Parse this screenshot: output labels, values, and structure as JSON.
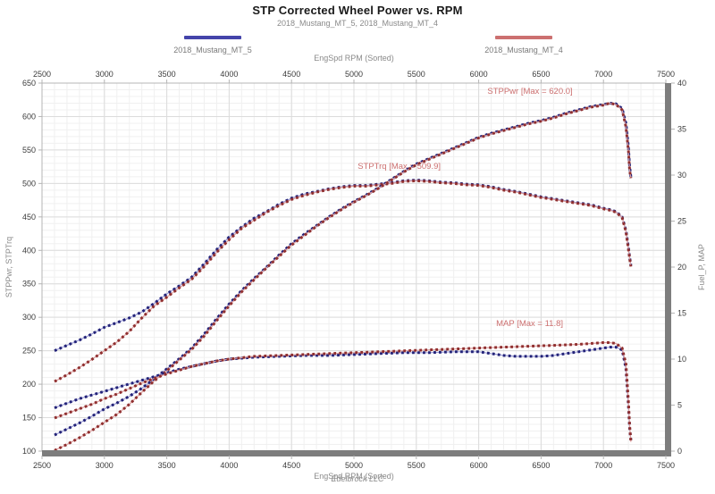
{
  "header": {
    "title": "STP Corrected Wheel Power vs. RPM",
    "subtitle": "2018_Mustang_MT_5, 2018_Mustang_MT_4"
  },
  "legend": [
    {
      "label": "2018_Mustang_MT_5",
      "color": "#4444aa"
    },
    {
      "label": "2018_Mustang_MT_4",
      "color": "#cc7070"
    }
  ],
  "footer": {
    "text": "Edelbrock LLC"
  },
  "colors": {
    "grid_major": "#dcdcdc",
    "grid_minor": "#f0f0f0",
    "border_thin": "#b4b4b4",
    "border_thick": "#7d7d7d",
    "tick_text": "#3c3c3c",
    "axis_label": "#8a8a8a",
    "annotation": "#cc7070"
  },
  "chart_data": {
    "type": "line",
    "title": "STP Corrected Wheel Power vs. RPM",
    "subtitle": "2018_Mustang_MT_5, 2018_Mustang_MT_4",
    "xlabel_top": "EngSpd RPM  (Sorted)",
    "xlabel_bottom": "EngSpd RPM  (Sorted)",
    "ylabel_left": "STPPwr, STPTrq",
    "ylabel_right": "Fuel_P, MAP",
    "x_range": [
      2500,
      7500
    ],
    "x_step": 500,
    "x_minor": 100,
    "y_left_range": [
      100,
      650
    ],
    "y_left_step": 50,
    "y_left_minor": 10,
    "y_right_range": [
      0,
      40
    ],
    "y_right_step": 5,
    "grid": true,
    "legend_position": "top",
    "annotations": [
      {
        "text": "STPPwr  [Max = 620.0]",
        "axis": "left",
        "x": 6070,
        "y": 634,
        "anchor": "start"
      },
      {
        "text": "STPTrq  [Max = 509.9]",
        "axis": "left",
        "x": 5030,
        "y": 522,
        "anchor": "start"
      },
      {
        "text": "MAP  [Max = 11.8]",
        "axis": "right",
        "x": 6140,
        "y": 13.6,
        "anchor": "start"
      }
    ],
    "series": [
      {
        "name": "STPTrq 2018_Mustang_MT_5",
        "axis": "left",
        "dot_color": "#232378",
        "line_color": "#9b9bd6",
        "points": [
          [
            2600,
            250
          ],
          [
            2700,
            258
          ],
          [
            2800,
            266
          ],
          [
            2900,
            275
          ],
          [
            3000,
            285
          ],
          [
            3100,
            292
          ],
          [
            3200,
            299
          ],
          [
            3300,
            308
          ],
          [
            3400,
            321
          ],
          [
            3500,
            335
          ],
          [
            3600,
            347
          ],
          [
            3700,
            360
          ],
          [
            3800,
            380
          ],
          [
            3900,
            401
          ],
          [
            4000,
            420
          ],
          [
            4100,
            435
          ],
          [
            4200,
            448
          ],
          [
            4300,
            458
          ],
          [
            4400,
            469
          ],
          [
            4500,
            478
          ],
          [
            4600,
            484
          ],
          [
            4700,
            488
          ],
          [
            4800,
            492
          ],
          [
            4900,
            495
          ],
          [
            5000,
            497
          ],
          [
            5100,
            497
          ],
          [
            5200,
            499
          ],
          [
            5300,
            501
          ],
          [
            5400,
            504
          ],
          [
            5500,
            505
          ],
          [
            5600,
            504
          ],
          [
            5700,
            502
          ],
          [
            5800,
            501
          ],
          [
            5900,
            499
          ],
          [
            6000,
            498
          ],
          [
            6100,
            495
          ],
          [
            6200,
            491
          ],
          [
            6300,
            488
          ],
          [
            6400,
            484
          ],
          [
            6500,
            480
          ],
          [
            6600,
            477
          ],
          [
            6700,
            474
          ],
          [
            6800,
            471
          ],
          [
            6900,
            468
          ],
          [
            7000,
            463
          ],
          [
            7050,
            461
          ],
          [
            7100,
            458
          ],
          [
            7150,
            450
          ],
          [
            7180,
            430
          ],
          [
            7200,
            405
          ],
          [
            7210,
            390
          ],
          [
            7220,
            378
          ]
        ]
      },
      {
        "name": "STPTrq 2018_Mustang_MT_4",
        "axis": "left",
        "dot_color": "#8f2f2f",
        "line_color": "#dc9c9c",
        "points": [
          [
            2600,
            204
          ],
          [
            2700,
            214
          ],
          [
            2800,
            225
          ],
          [
            2900,
            237
          ],
          [
            3000,
            250
          ],
          [
            3100,
            263
          ],
          [
            3200,
            279
          ],
          [
            3300,
            299
          ],
          [
            3400,
            317
          ],
          [
            3500,
            330
          ],
          [
            3600,
            344
          ],
          [
            3700,
            357
          ],
          [
            3800,
            376
          ],
          [
            3900,
            397
          ],
          [
            4000,
            416
          ],
          [
            4100,
            433
          ],
          [
            4200,
            445
          ],
          [
            4300,
            457
          ],
          [
            4400,
            467
          ],
          [
            4500,
            476
          ],
          [
            4600,
            482
          ],
          [
            4700,
            487
          ],
          [
            4800,
            491
          ],
          [
            4900,
            494
          ],
          [
            5000,
            496
          ],
          [
            5100,
            496
          ],
          [
            5200,
            498
          ],
          [
            5300,
            500
          ],
          [
            5400,
            503
          ],
          [
            5500,
            504
          ],
          [
            5600,
            503
          ],
          [
            5700,
            501
          ],
          [
            5800,
            500
          ],
          [
            5900,
            498
          ],
          [
            6000,
            497
          ],
          [
            6100,
            494
          ],
          [
            6200,
            490
          ],
          [
            6300,
            487
          ],
          [
            6400,
            483
          ],
          [
            6500,
            479
          ],
          [
            6600,
            476
          ],
          [
            6700,
            473
          ],
          [
            6800,
            470
          ],
          [
            6900,
            467
          ],
          [
            7000,
            462
          ],
          [
            7050,
            460
          ],
          [
            7100,
            457
          ],
          [
            7150,
            449
          ],
          [
            7180,
            428
          ],
          [
            7200,
            402
          ],
          [
            7210,
            388
          ],
          [
            7220,
            376
          ]
        ]
      },
      {
        "name": "STPPwr 2018_Mustang_MT_5",
        "axis": "left",
        "dot_color": "#232378",
        "line_color": "#9b9bd6",
        "points": [
          [
            2600,
            124
          ],
          [
            2700,
            133
          ],
          [
            2800,
            142
          ],
          [
            2900,
            152
          ],
          [
            3000,
            163
          ],
          [
            3100,
            172
          ],
          [
            3200,
            182
          ],
          [
            3300,
            194
          ],
          [
            3400,
            208
          ],
          [
            3500,
            223
          ],
          [
            3600,
            238
          ],
          [
            3700,
            254
          ],
          [
            3800,
            275
          ],
          [
            3900,
            298
          ],
          [
            4000,
            320
          ],
          [
            4100,
            340
          ],
          [
            4200,
            358
          ],
          [
            4300,
            375
          ],
          [
            4400,
            393
          ],
          [
            4500,
            410
          ],
          [
            4600,
            424
          ],
          [
            4700,
            437
          ],
          [
            4800,
            450
          ],
          [
            4900,
            462
          ],
          [
            5000,
            473
          ],
          [
            5100,
            483
          ],
          [
            5200,
            494
          ],
          [
            5300,
            506
          ],
          [
            5400,
            518
          ],
          [
            5500,
            529
          ],
          [
            5600,
            537
          ],
          [
            5700,
            545
          ],
          [
            5800,
            553
          ],
          [
            5900,
            561
          ],
          [
            6000,
            569
          ],
          [
            6100,
            575
          ],
          [
            6200,
            580
          ],
          [
            6300,
            585
          ],
          [
            6400,
            590
          ],
          [
            6500,
            594
          ],
          [
            6600,
            599
          ],
          [
            6700,
            605
          ],
          [
            6800,
            610
          ],
          [
            6900,
            615
          ],
          [
            7000,
            618
          ],
          [
            7050,
            620
          ],
          [
            7100,
            619
          ],
          [
            7150,
            612
          ],
          [
            7180,
            590
          ],
          [
            7200,
            555
          ],
          [
            7210,
            525
          ],
          [
            7220,
            510
          ]
        ]
      },
      {
        "name": "STPPwr 2018_Mustang_MT_4",
        "axis": "left",
        "dot_color": "#8f2f2f",
        "line_color": "#dc9c9c",
        "points": [
          [
            2600,
            101
          ],
          [
            2700,
            110
          ],
          [
            2800,
            120
          ],
          [
            2900,
            131
          ],
          [
            3000,
            143
          ],
          [
            3100,
            155
          ],
          [
            3200,
            170
          ],
          [
            3300,
            188
          ],
          [
            3400,
            205
          ],
          [
            3500,
            220
          ],
          [
            3600,
            236
          ],
          [
            3700,
            252
          ],
          [
            3800,
            272
          ],
          [
            3900,
            295
          ],
          [
            4000,
            317
          ],
          [
            4100,
            338
          ],
          [
            4200,
            356
          ],
          [
            4300,
            374
          ],
          [
            4400,
            391
          ],
          [
            4500,
            408
          ],
          [
            4600,
            422
          ],
          [
            4700,
            436
          ],
          [
            4800,
            449
          ],
          [
            4900,
            461
          ],
          [
            5000,
            472
          ],
          [
            5100,
            482
          ],
          [
            5200,
            493
          ],
          [
            5300,
            505
          ],
          [
            5400,
            517
          ],
          [
            5500,
            528
          ],
          [
            5600,
            536
          ],
          [
            5700,
            544
          ],
          [
            5800,
            552
          ],
          [
            5900,
            560
          ],
          [
            6000,
            568
          ],
          [
            6100,
            574
          ],
          [
            6200,
            579
          ],
          [
            6300,
            584
          ],
          [
            6400,
            589
          ],
          [
            6500,
            593
          ],
          [
            6600,
            598
          ],
          [
            6700,
            604
          ],
          [
            6800,
            609
          ],
          [
            6900,
            614
          ],
          [
            7000,
            617
          ],
          [
            7050,
            620
          ],
          [
            7100,
            618
          ],
          [
            7150,
            610
          ],
          [
            7180,
            585
          ],
          [
            7200,
            550
          ],
          [
            7210,
            520
          ],
          [
            7220,
            508
          ]
        ]
      },
      {
        "name": "MAP 2018_Mustang_MT_5",
        "axis": "right",
        "dot_color": "#232378",
        "line_color": "#9b9bd6",
        "points": [
          [
            2600,
            4.7
          ],
          [
            2700,
            5.2
          ],
          [
            2800,
            5.7
          ],
          [
            2900,
            6.1
          ],
          [
            3000,
            6.5
          ],
          [
            3100,
            6.9
          ],
          [
            3200,
            7.3
          ],
          [
            3300,
            7.7
          ],
          [
            3400,
            8.1
          ],
          [
            3500,
            8.5
          ],
          [
            3600,
            8.9
          ],
          [
            3700,
            9.2
          ],
          [
            3800,
            9.5
          ],
          [
            3900,
            9.8
          ],
          [
            4000,
            10.0
          ],
          [
            4200,
            10.2
          ],
          [
            4400,
            10.3
          ],
          [
            4600,
            10.4
          ],
          [
            4800,
            10.4
          ],
          [
            5000,
            10.5
          ],
          [
            5200,
            10.6
          ],
          [
            5400,
            10.7
          ],
          [
            5600,
            10.7
          ],
          [
            5800,
            10.8
          ],
          [
            6000,
            10.8
          ],
          [
            6100,
            10.6
          ],
          [
            6200,
            10.4
          ],
          [
            6300,
            10.3
          ],
          [
            6400,
            10.3
          ],
          [
            6500,
            10.3
          ],
          [
            6600,
            10.4
          ],
          [
            6700,
            10.6
          ],
          [
            6800,
            10.8
          ],
          [
            6900,
            11.0
          ],
          [
            7000,
            11.2
          ],
          [
            7050,
            11.3
          ],
          [
            7100,
            11.3
          ],
          [
            7150,
            11.0
          ],
          [
            7180,
            9.0
          ],
          [
            7200,
            5.0
          ],
          [
            7210,
            2.5
          ],
          [
            7220,
            1.2
          ]
        ]
      },
      {
        "name": "MAP 2018_Mustang_MT_4",
        "axis": "right",
        "dot_color": "#8f2f2f",
        "line_color": "#dc9c9c",
        "points": [
          [
            2600,
            3.6
          ],
          [
            2700,
            4.1
          ],
          [
            2800,
            4.6
          ],
          [
            2900,
            5.1
          ],
          [
            3000,
            5.7
          ],
          [
            3100,
            6.2
          ],
          [
            3200,
            6.8
          ],
          [
            3300,
            7.4
          ],
          [
            3400,
            7.9
          ],
          [
            3500,
            8.4
          ],
          [
            3600,
            8.8
          ],
          [
            3700,
            9.2
          ],
          [
            3800,
            9.5
          ],
          [
            3900,
            9.8
          ],
          [
            4000,
            10.0
          ],
          [
            4200,
            10.3
          ],
          [
            4400,
            10.4
          ],
          [
            4600,
            10.5
          ],
          [
            4800,
            10.6
          ],
          [
            5000,
            10.7
          ],
          [
            5200,
            10.8
          ],
          [
            5400,
            10.9
          ],
          [
            5600,
            11.0
          ],
          [
            5800,
            11.1
          ],
          [
            6000,
            11.2
          ],
          [
            6200,
            11.3
          ],
          [
            6400,
            11.4
          ],
          [
            6600,
            11.5
          ],
          [
            6800,
            11.6
          ],
          [
            6900,
            11.7
          ],
          [
            7000,
            11.8
          ],
          [
            7050,
            11.8
          ],
          [
            7100,
            11.7
          ],
          [
            7150,
            11.2
          ],
          [
            7180,
            9.5
          ],
          [
            7200,
            5.5
          ],
          [
            7210,
            2.8
          ],
          [
            7220,
            1.0
          ]
        ]
      }
    ]
  }
}
